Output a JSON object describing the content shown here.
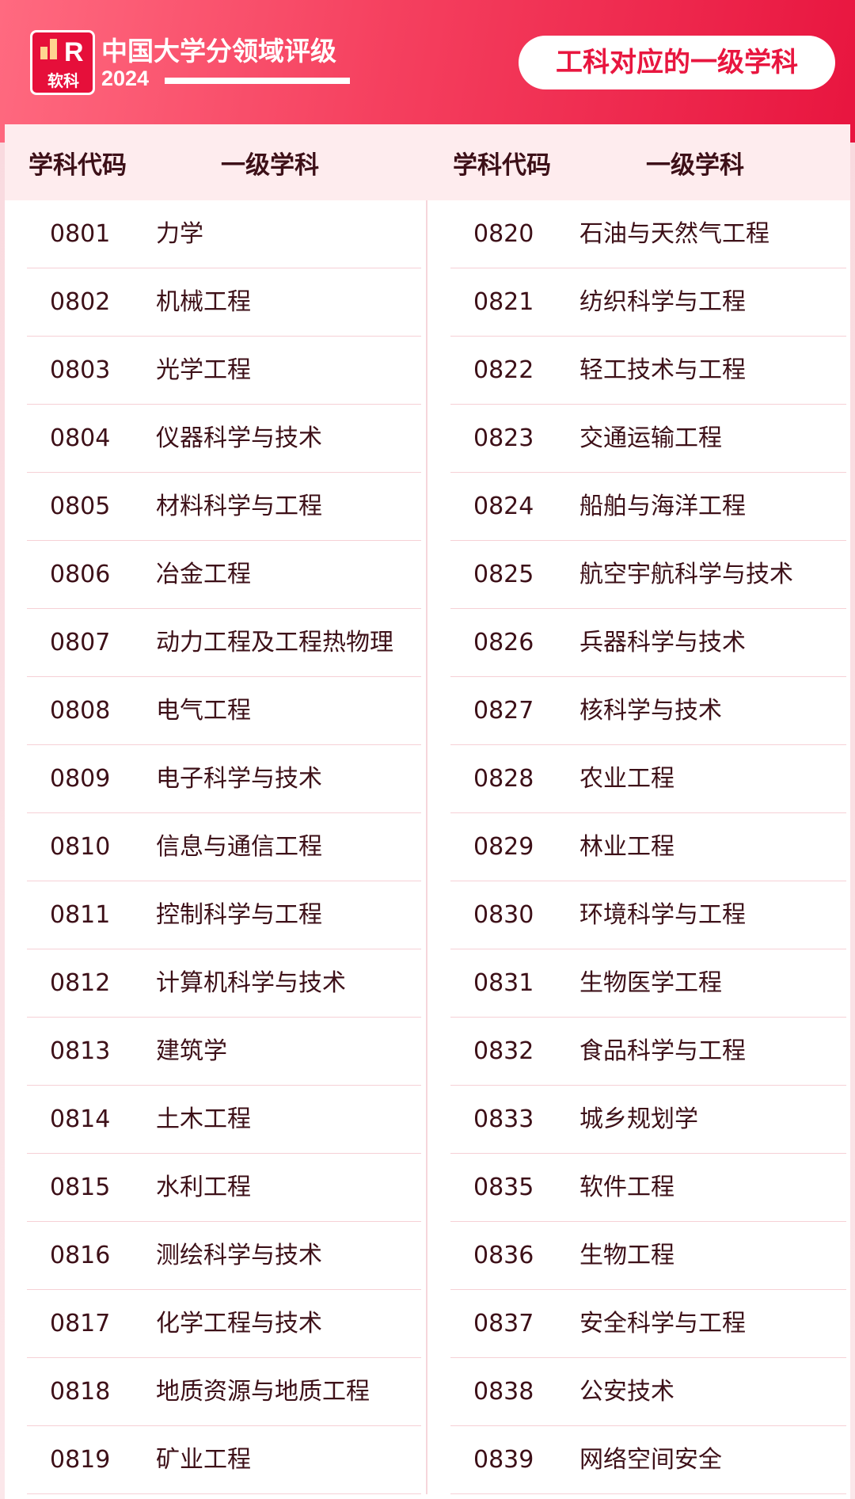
{
  "header": {
    "logo_text": "软科",
    "title": "中国大学分领域评级",
    "year": "2024",
    "badge": "工科对应的一级学科"
  },
  "table": {
    "headers": [
      "学科代码",
      "一级学科",
      "学科代码",
      "一级学科"
    ],
    "left": [
      [
        "0801",
        "力学"
      ],
      [
        "0802",
        "机械工程"
      ],
      [
        "0803",
        "光学工程"
      ],
      [
        "0804",
        "仪器科学与技术"
      ],
      [
        "0805",
        "材料科学与工程"
      ],
      [
        "0806",
        "冶金工程"
      ],
      [
        "0807",
        "动力工程及工程热物理"
      ],
      [
        "0808",
        "电气工程"
      ],
      [
        "0809",
        "电子科学与技术"
      ],
      [
        "0810",
        "信息与通信工程"
      ],
      [
        "0811",
        "控制科学与工程"
      ],
      [
        "0812",
        "计算机科学与技术"
      ],
      [
        "0813",
        "建筑学"
      ],
      [
        "0814",
        "土木工程"
      ],
      [
        "0815",
        "水利工程"
      ],
      [
        "0816",
        "测绘科学与技术"
      ],
      [
        "0817",
        "化学工程与技术"
      ],
      [
        "0818",
        "地质资源与地质工程"
      ],
      [
        "0819",
        "矿业工程"
      ]
    ],
    "right": [
      [
        "0820",
        "石油与天然气工程"
      ],
      [
        "0821",
        "纺织科学与工程"
      ],
      [
        "0822",
        "轻工技术与工程"
      ],
      [
        "0823",
        "交通运输工程"
      ],
      [
        "0824",
        "船舶与海洋工程"
      ],
      [
        "0825",
        "航空宇航科学与技术"
      ],
      [
        "0826",
        "兵器科学与技术"
      ],
      [
        "0827",
        "核科学与技术"
      ],
      [
        "0828",
        "农业工程"
      ],
      [
        "0829",
        "林业工程"
      ],
      [
        "0830",
        "环境科学与工程"
      ],
      [
        "0831",
        "生物医学工程"
      ],
      [
        "0832",
        "食品科学与工程"
      ],
      [
        "0833",
        "城乡规划学"
      ],
      [
        "0835",
        "软件工程"
      ],
      [
        "0836",
        "生物工程"
      ],
      [
        "0837",
        "安全科学与工程"
      ],
      [
        "0838",
        "公安技术"
      ],
      [
        "0839",
        "网络空间安全"
      ]
    ]
  }
}
